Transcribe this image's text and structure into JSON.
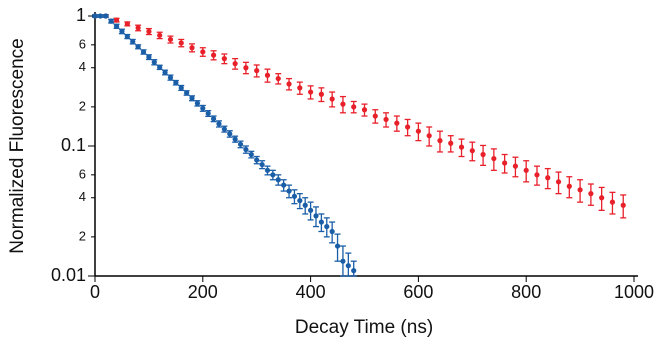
{
  "chart_data": {
    "type": "scatter",
    "xlabel": "Decay Time (ns)",
    "ylabel": "Normalized Fluorescence",
    "xlim": [
      0,
      1000
    ],
    "ylim": [
      0.01,
      1
    ],
    "log_y": true,
    "xticks": [
      0,
      200,
      400,
      600,
      800,
      1000
    ],
    "yticks": [
      1,
      {
        "value": 0.6,
        "label": "6"
      },
      {
        "value": 0.4,
        "label": "4"
      },
      {
        "value": 0.2,
        "label": "2"
      },
      0.1,
      {
        "value": 0.06,
        "label": "6"
      },
      {
        "value": 0.04,
        "label": "4"
      },
      {
        "value": 0.02,
        "label": "2"
      },
      0.01
    ],
    "series": [
      {
        "color": "#e8202a",
        "x": [
          0,
          20,
          40,
          60,
          80,
          100,
          120,
          140,
          160,
          180,
          200,
          220,
          240,
          260,
          280,
          300,
          320,
          340,
          360,
          380,
          400,
          420,
          440,
          460,
          480,
          500,
          520,
          540,
          560,
          580,
          600,
          620,
          640,
          660,
          680,
          700,
          720,
          740,
          760,
          780,
          800,
          820,
          840,
          860,
          880,
          900,
          920,
          940,
          960,
          980
        ],
        "values": [
          1,
          1,
          0.93,
          0.87,
          0.81,
          0.76,
          0.71,
          0.66,
          0.62,
          0.57,
          0.53,
          0.5,
          0.47,
          0.43,
          0.4,
          0.38,
          0.35,
          0.33,
          0.3,
          0.28,
          0.26,
          0.25,
          0.23,
          0.21,
          0.2,
          0.19,
          0.17,
          0.16,
          0.15,
          0.14,
          0.13,
          0.12,
          0.11,
          0.105,
          0.098,
          0.092,
          0.086,
          0.08,
          0.074,
          0.07,
          0.065,
          0.06,
          0.057,
          0.053,
          0.049,
          0.046,
          0.043,
          0.04,
          0.037,
          0.035
        ],
        "errors": [
          0.02,
          0.02,
          0.03,
          0.03,
          0.04,
          0.04,
          0.04,
          0.04,
          0.04,
          0.04,
          0.04,
          0.04,
          0.04,
          0.04,
          0.04,
          0.04,
          0.04,
          0.03,
          0.03,
          0.03,
          0.03,
          0.03,
          0.03,
          0.03,
          0.02,
          0.02,
          0.02,
          0.02,
          0.02,
          0.02,
          0.02,
          0.02,
          0.02,
          0.015,
          0.015,
          0.015,
          0.015,
          0.015,
          0.012,
          0.012,
          0.012,
          0.01,
          0.01,
          0.01,
          0.009,
          0.009,
          0.008,
          0.008,
          0.007,
          0.007
        ]
      },
      {
        "color": "#1a5ea8",
        "x": [
          0,
          10,
          20,
          30,
          40,
          50,
          60,
          70,
          80,
          90,
          100,
          110,
          120,
          130,
          140,
          150,
          160,
          170,
          180,
          190,
          200,
          210,
          220,
          230,
          240,
          250,
          260,
          270,
          280,
          290,
          300,
          310,
          320,
          330,
          340,
          350,
          360,
          370,
          380,
          390,
          400,
          410,
          420,
          430,
          440,
          450,
          460,
          470,
          480
        ],
        "values": [
          1,
          1,
          1,
          0.913,
          0.834,
          0.761,
          0.695,
          0.635,
          0.58,
          0.529,
          0.483,
          0.441,
          0.403,
          0.368,
          0.336,
          0.307,
          0.28,
          0.256,
          0.233,
          0.213,
          0.195,
          0.178,
          0.162,
          0.148,
          0.135,
          0.124,
          0.113,
          0.103,
          0.094,
          0.086,
          0.078,
          0.072,
          0.065,
          0.06,
          0.055,
          0.05,
          0.045,
          0.041,
          0.038,
          0.035,
          0.032,
          0.029,
          0.026,
          0.024,
          0.022,
          0.017,
          0.013,
          0.012,
          0.011
        ],
        "errors": [
          0.02,
          0.02,
          0.02,
          0.03,
          0.03,
          0.03,
          0.025,
          0.025,
          0.02,
          0.02,
          0.02,
          0.02,
          0.015,
          0.015,
          0.015,
          0.012,
          0.012,
          0.01,
          0.01,
          0.01,
          0.01,
          0.009,
          0.008,
          0.008,
          0.007,
          0.007,
          0.006,
          0.006,
          0.006,
          0.005,
          0.005,
          0.005,
          0.005,
          0.005,
          0.005,
          0.005,
          0.005,
          0.005,
          0.005,
          0.005,
          0.005,
          0.005,
          0.004,
          0.004,
          0.004,
          0.004,
          0.004,
          0.003,
          0.002
        ]
      }
    ]
  }
}
